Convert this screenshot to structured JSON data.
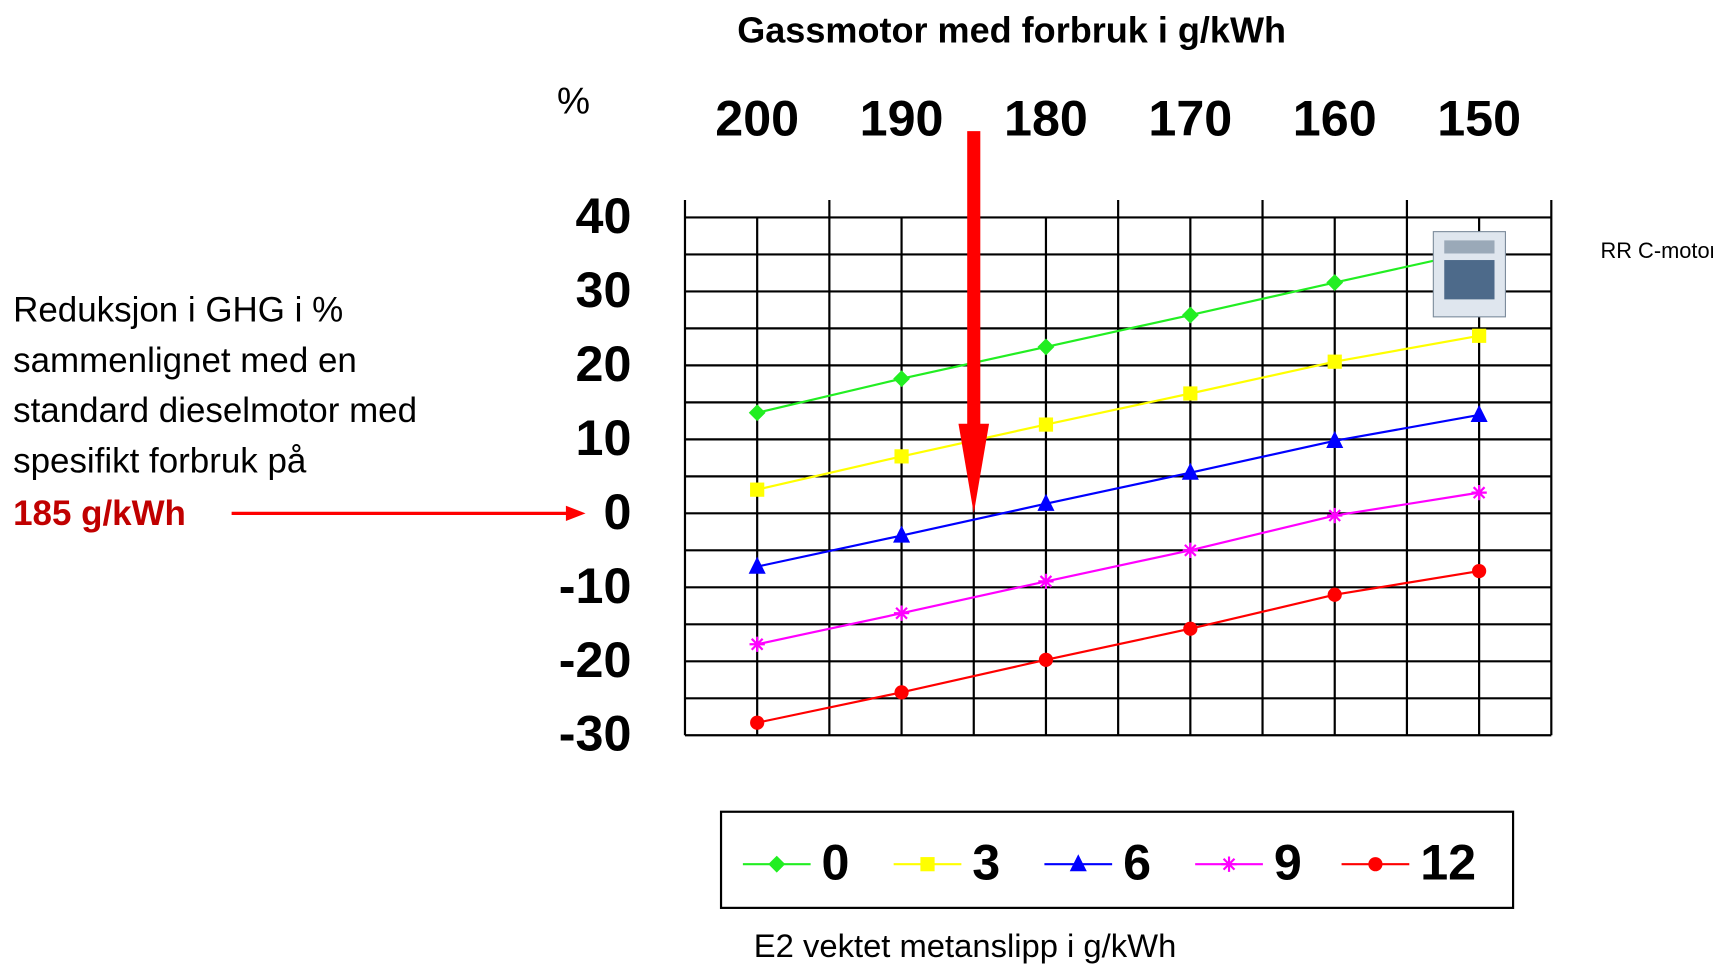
{
  "chart_data": {
    "type": "line",
    "title": "Gassmotor med forbruk i g/kWh",
    "ylabel": "%",
    "x": [
      200,
      190,
      180,
      170,
      160,
      150
    ],
    "xlim": [
      205,
      145
    ],
    "xticks": [
      200,
      190,
      180,
      170,
      160,
      150
    ],
    "x_minor_ticks": [
      205,
      195,
      185,
      175,
      165,
      155,
      145
    ],
    "ylim": [
      -30,
      40
    ],
    "yticks": [
      40,
      30,
      20,
      10,
      0,
      -10,
      -20,
      -30
    ],
    "y_minor_ticks": [
      35,
      25,
      15,
      5,
      -5,
      -15,
      -25
    ],
    "grid": true,
    "series": [
      {
        "name": "0",
        "color": "#22ee22",
        "marker": "diamond",
        "values": [
          13.6,
          18.2,
          22.5,
          26.8,
          31.2,
          35.5
        ]
      },
      {
        "name": "3",
        "color": "#ffff00",
        "marker": "square",
        "values": [
          3.2,
          7.7,
          12,
          16.2,
          20.5,
          24
        ]
      },
      {
        "name": "6",
        "color": "#0000ff",
        "marker": "triangle",
        "values": [
          -7.2,
          -3,
          1.3,
          5.5,
          9.8,
          13.3
        ]
      },
      {
        "name": "9",
        "color": "#ff00ff",
        "marker": "star",
        "values": [
          -17.7,
          -13.5,
          -9.2,
          -5,
          -0.3,
          2.8
        ]
      },
      {
        "name": "12",
        "color": "#ff0000",
        "marker": "circle",
        "values": [
          -28.3,
          -24.2,
          -19.8,
          -15.6,
          -11,
          -7.8
        ]
      }
    ],
    "legend_title": "E2 vektet metanslipp i g/kWh",
    "reference_x": 185,
    "annotation_lines": [
      "Reduksjon i GHG i %",
      "sammenlignet med en",
      "standard dieselmotor med",
      "spesifikt forbruk på"
    ],
    "annotation_highlight": "185 g/kWh",
    "image_label": "RR C-motor"
  }
}
